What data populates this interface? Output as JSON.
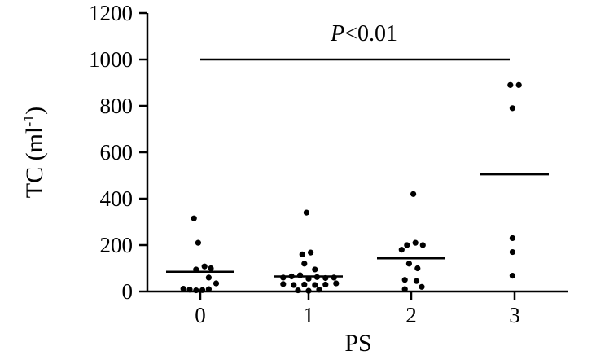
{
  "chart_data": {
    "type": "scatter",
    "xlabel": "PS",
    "ylabel_main": "TC (ml",
    "ylabel_sup": "-1",
    "ylabel_close": ")",
    "ylim": [
      0,
      1200
    ],
    "yticks": [
      0,
      200,
      400,
      600,
      800,
      1000,
      1200
    ],
    "categories": [
      "0",
      "1",
      "2",
      "3"
    ],
    "grid": false,
    "legend": "none",
    "point_color": "#000000",
    "groups": [
      {
        "category": "0",
        "mean": 85,
        "points": [
          {
            "dx": -0.06,
            "y": 315
          },
          {
            "dx": -0.02,
            "y": 210
          },
          {
            "dx": -0.04,
            "y": 95
          },
          {
            "dx": 0.04,
            "y": 108
          },
          {
            "dx": 0.1,
            "y": 100
          },
          {
            "dx": 0.08,
            "y": 60
          },
          {
            "dx": 0.15,
            "y": 35
          },
          {
            "dx": -0.16,
            "y": 12
          },
          {
            "dx": -0.1,
            "y": 8
          },
          {
            "dx": -0.04,
            "y": 5
          },
          {
            "dx": 0.02,
            "y": 6
          },
          {
            "dx": 0.08,
            "y": 10
          }
        ]
      },
      {
        "category": "1",
        "mean": 65,
        "points": [
          {
            "dx": -0.02,
            "y": 340
          },
          {
            "dx": -0.06,
            "y": 160
          },
          {
            "dx": 0.02,
            "y": 168
          },
          {
            "dx": -0.04,
            "y": 120
          },
          {
            "dx": 0.06,
            "y": 95
          },
          {
            "dx": -0.24,
            "y": 60
          },
          {
            "dx": -0.16,
            "y": 65
          },
          {
            "dx": -0.08,
            "y": 70
          },
          {
            "dx": 0.0,
            "y": 55
          },
          {
            "dx": 0.08,
            "y": 62
          },
          {
            "dx": 0.16,
            "y": 58
          },
          {
            "dx": 0.24,
            "y": 60
          },
          {
            "dx": -0.24,
            "y": 32
          },
          {
            "dx": -0.14,
            "y": 28
          },
          {
            "dx": -0.04,
            "y": 30
          },
          {
            "dx": 0.06,
            "y": 28
          },
          {
            "dx": 0.16,
            "y": 30
          },
          {
            "dx": 0.26,
            "y": 35
          },
          {
            "dx": -0.1,
            "y": 5
          },
          {
            "dx": 0.0,
            "y": 3
          },
          {
            "dx": 0.1,
            "y": 8
          }
        ]
      },
      {
        "category": "2",
        "mean": 143,
        "points": [
          {
            "dx": 0.02,
            "y": 420
          },
          {
            "dx": -0.04,
            "y": 200
          },
          {
            "dx": 0.04,
            "y": 210
          },
          {
            "dx": 0.11,
            "y": 200
          },
          {
            "dx": -0.09,
            "y": 180
          },
          {
            "dx": -0.02,
            "y": 120
          },
          {
            "dx": 0.06,
            "y": 100
          },
          {
            "dx": -0.06,
            "y": 50
          },
          {
            "dx": 0.05,
            "y": 45
          },
          {
            "dx": 0.1,
            "y": 20
          },
          {
            "dx": -0.06,
            "y": 10
          }
        ]
      },
      {
        "category": "3",
        "mean": 505,
        "points": [
          {
            "dx": -0.04,
            "y": 890
          },
          {
            "dx": 0.04,
            "y": 890
          },
          {
            "dx": -0.02,
            "y": 790
          },
          {
            "dx": -0.02,
            "y": 230
          },
          {
            "dx": -0.02,
            "y": 170
          },
          {
            "dx": -0.02,
            "y": 68
          }
        ]
      }
    ],
    "significance": {
      "from": "0",
      "to": "3",
      "y": 1000,
      "label_italic": "P",
      "label_rest": "<0.01"
    }
  }
}
